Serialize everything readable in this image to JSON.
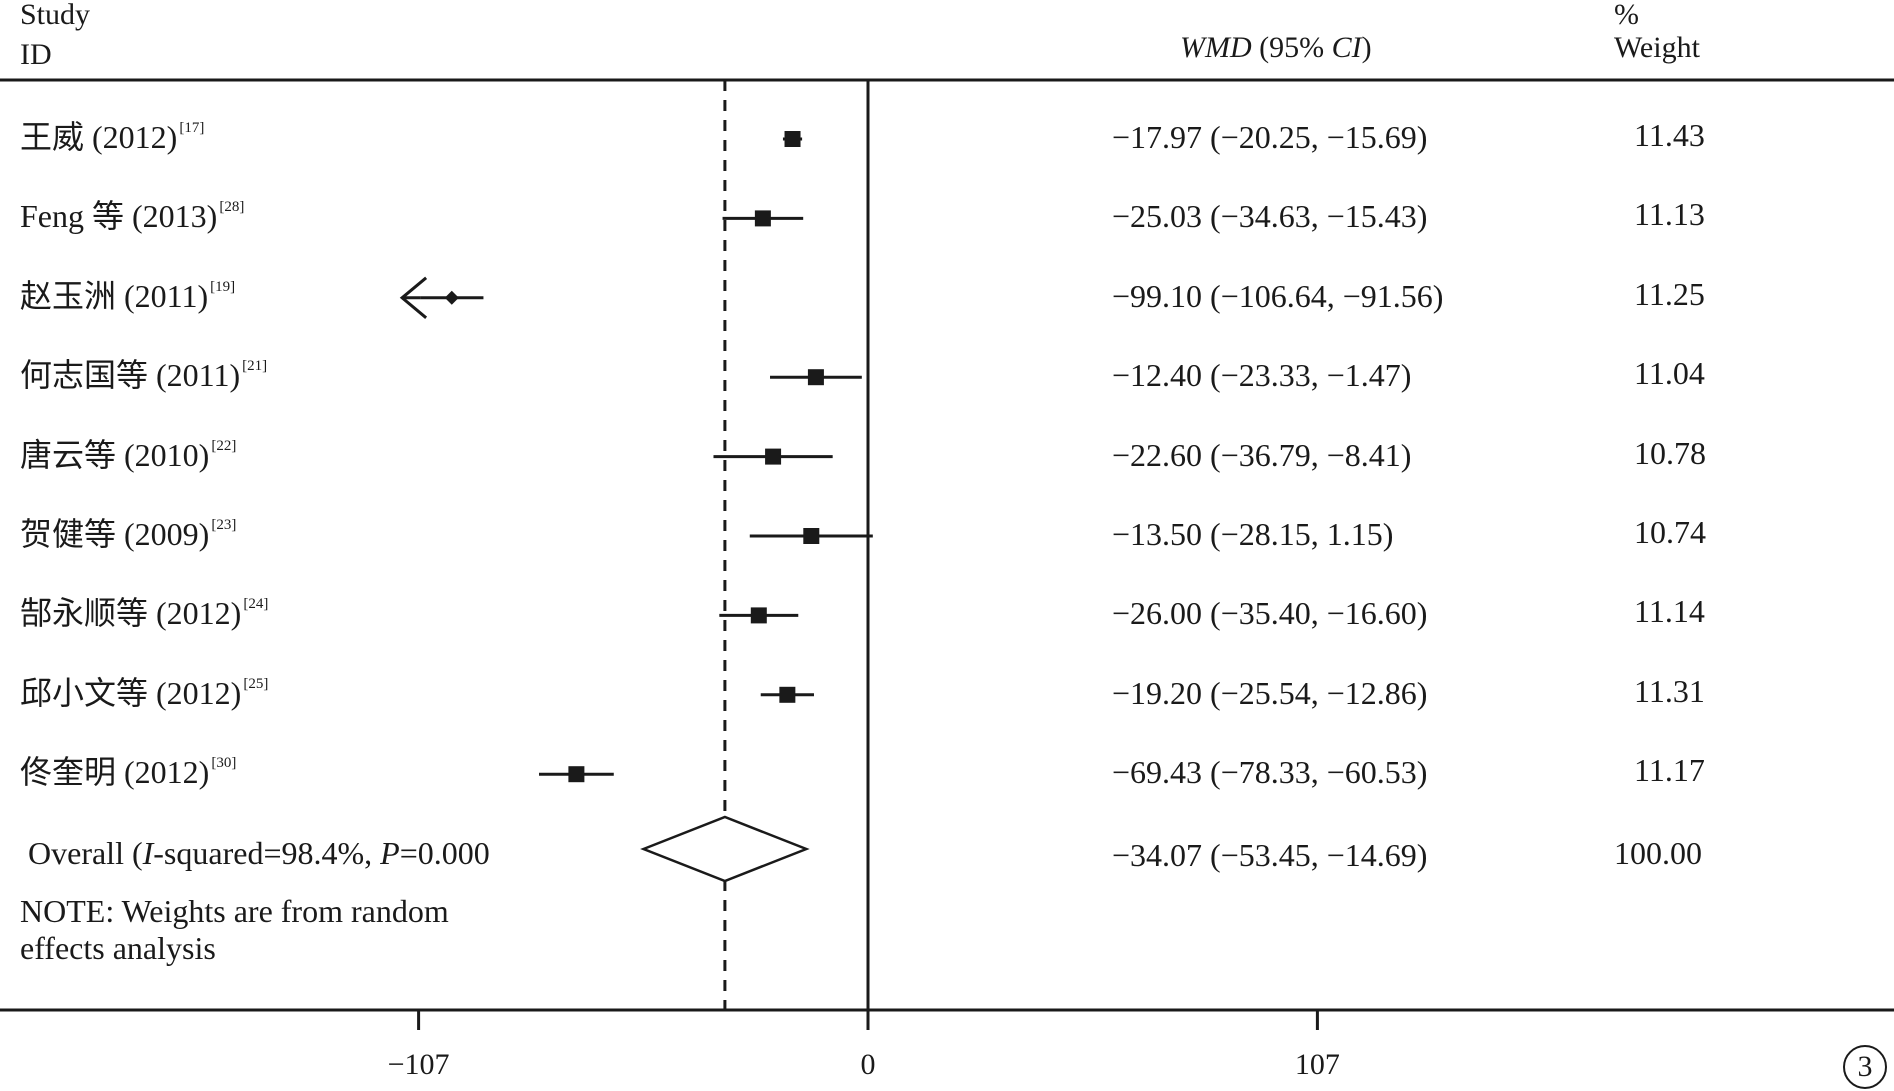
{
  "header": {
    "study": "Study",
    "id": "ID",
    "effect_label_pre": "WMD",
    "effect_label_mid": " (95% ",
    "effect_label_ci": "CI",
    "effect_label_post": ")",
    "pct": "%",
    "weight": "Weight"
  },
  "note_line1": "NOTE: Weights are from random",
  "note_line2": "effects analysis",
  "panel_label": "3",
  "chart_data": {
    "type": "forest",
    "effect_measure": "WMD (95% CI)",
    "x_ticks": [
      -107,
      0,
      107
    ],
    "x_tick_labels": [
      "−107",
      "0",
      "107"
    ],
    "xlim": [
      -198,
      230
    ],
    "reference_line": 0,
    "overall_line": -34.07,
    "studies": [
      {
        "name": "王威 (2012)",
        "ref": "[17]",
        "est": -17.97,
        "lo": -20.25,
        "hi": -15.69,
        "label": "−17.97 (−20.25, −15.69)",
        "weight": "11.43"
      },
      {
        "name": "Feng 等 (2013)",
        "ref": "[28]",
        "est": -25.03,
        "lo": -34.63,
        "hi": -15.43,
        "label": "−25.03 (−34.63, −15.43)",
        "weight": "11.13"
      },
      {
        "name": "赵玉洲 (2011)",
        "ref": "[19]",
        "est": -99.1,
        "lo": -106.64,
        "hi": -91.56,
        "label": "−99.10 (−106.64, −91.56)",
        "weight": "11.25"
      },
      {
        "name": "何志国等 (2011)",
        "ref": "[21]",
        "est": -12.4,
        "lo": -23.33,
        "hi": -1.47,
        "label": "−12.40 (−23.33, −1.47)",
        "weight": "11.04"
      },
      {
        "name": "唐云等 (2010)",
        "ref": "[22]",
        "est": -22.6,
        "lo": -36.79,
        "hi": -8.41,
        "label": "−22.60 (−36.79, −8.41)",
        "weight": "10.78"
      },
      {
        "name": "贺健等  (2009)",
        "ref": "[23]",
        "est": -13.5,
        "lo": -28.15,
        "hi": 1.15,
        "label": "−13.50 (−28.15, 1.15)",
        "weight": "10.74"
      },
      {
        "name": "郜永顺等 (2012)",
        "ref": "[24]",
        "est": -26.0,
        "lo": -35.4,
        "hi": -16.6,
        "label": "−26.00 (−35.40, −16.60)",
        "weight": "11.14"
      },
      {
        "name": "邱小文等 (2012)",
        "ref": "[25]",
        "est": -19.2,
        "lo": -25.54,
        "hi": -12.86,
        "label": "−19.20 (−25.54, −12.86)",
        "weight": "11.31"
      },
      {
        "name": "佟奎明  (2012)",
        "ref": "[30]",
        "est": -69.43,
        "lo": -78.33,
        "hi": -60.53,
        "label": "−69.43 (−78.33, −60.53)",
        "weight": "11.17"
      }
    ],
    "overall": {
      "name_pre": "Overall (",
      "name_i": "I",
      "name_mid": "-squared=98.4%, ",
      "name_p": "P",
      "name_post": "=0.000",
      "est": -34.07,
      "lo": -53.45,
      "hi": -14.69,
      "label": "−34.07 (−53.45, −14.69)",
      "weight": "100.00"
    }
  }
}
